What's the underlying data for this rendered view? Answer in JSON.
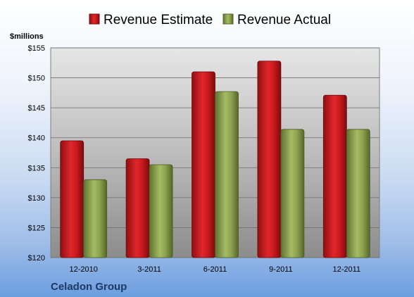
{
  "chart_data": {
    "type": "bar",
    "title": "",
    "subtitle": "Celadon Group",
    "ylabel": "$millions",
    "xlabel": "",
    "categories": [
      "12-2010",
      "3-2011",
      "6-2011",
      "9-2011",
      "12-2011"
    ],
    "series": [
      {
        "name": "Revenue Estimate",
        "values": [
          139.5,
          136.5,
          151.0,
          152.8,
          147.1
        ],
        "color": "#c0181c"
      },
      {
        "name": "Revenue Actual",
        "values": [
          133.0,
          135.5,
          147.7,
          141.4,
          141.4
        ],
        "color": "#8aa04c"
      }
    ],
    "ylim": [
      120,
      155
    ],
    "yticks": [
      "$120",
      "$125",
      "$130",
      "$135",
      "$140",
      "$145",
      "$150",
      "$155"
    ],
    "ytick_values": [
      120,
      125,
      130,
      135,
      140,
      145,
      150,
      155
    ],
    "grid": true,
    "legend_position": "top"
  }
}
